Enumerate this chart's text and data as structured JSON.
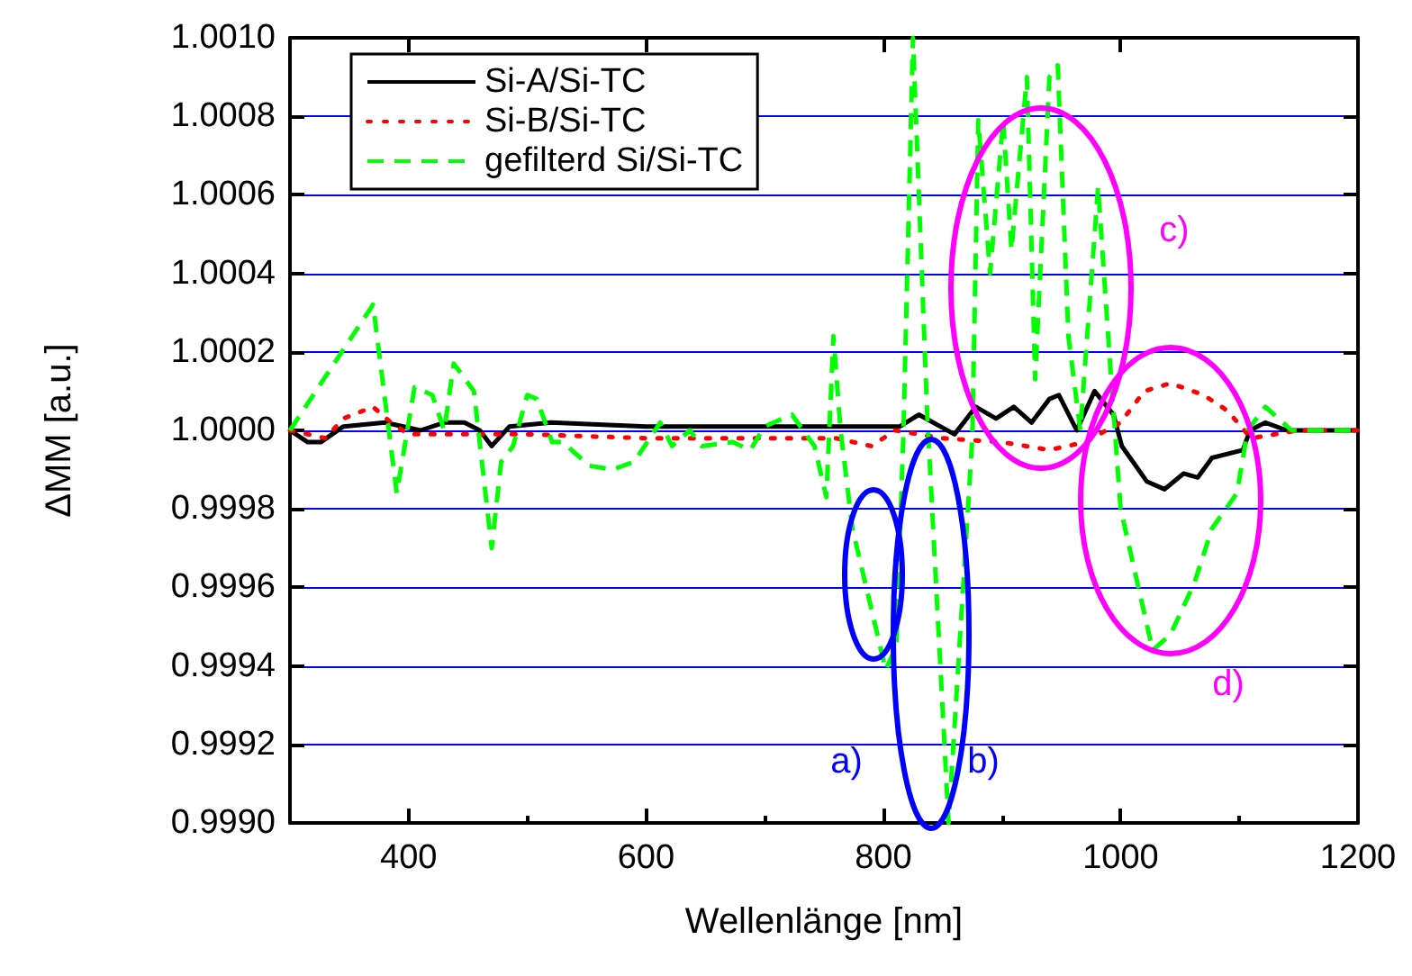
{
  "chart_data": {
    "type": "line",
    "xlabel": "Wellenlänge [nm]",
    "ylabel": "ΔMM [a.u.]",
    "xlim": [
      300,
      1200
    ],
    "xticks": [
      400,
      600,
      800,
      {
        "value": 1000,
        "label": "1000"
      },
      {
        "value": 1200,
        "label": "1200"
      }
    ],
    "ylim": [
      0.999,
      1.001
    ],
    "yticks": [
      {
        "value": 0.999,
        "label": "0.9990"
      },
      0.9992,
      0.9994,
      0.9996,
      0.9998,
      {
        "value": 1.0,
        "label": "1.0000"
      },
      1.0002,
      1.0004,
      1.0006,
      1.0008,
      {
        "value": 1.001,
        "label": "1.0010"
      }
    ],
    "grid": "y",
    "legend": "top left",
    "marker": "none",
    "series": [
      {
        "name": "Si-A/Si-TC",
        "color": "#000000",
        "line_style": "solid",
        "x": [
          300,
          315,
          326,
          345,
          380,
          410,
          430,
          447,
          460,
          470,
          485,
          520,
          600,
          700,
          800,
          814,
          830,
          860,
          878,
          895,
          910,
          925,
          940,
          948,
          963,
          978,
          994,
          1001,
          1022,
          1037,
          1053,
          1065,
          1077,
          1103,
          1109,
          1122,
          1140,
          1200
        ],
        "values": [
          1.0,
          0.99997,
          0.99997,
          1.00001,
          1.00002,
          1.0,
          1.00002,
          1.00002,
          1.0,
          0.99996,
          1.00001,
          1.00002,
          1.00001,
          1.00001,
          1.00001,
          1.00001,
          1.00004,
          0.99999,
          1.00006,
          1.00003,
          1.00006,
          1.00002,
          1.00008,
          1.00009,
          1.0,
          1.0001,
          1.00004,
          0.99996,
          0.99987,
          0.99985,
          0.99989,
          0.99988,
          0.99993,
          0.99995,
          1.0,
          1.00002,
          1.0,
          1.0
        ]
      },
      {
        "name": "Si-B/Si-TC",
        "color": "#ff0000",
        "line_style": "dotted",
        "x": [
          300,
          330,
          345,
          370,
          385,
          400,
          500,
          600,
          700,
          760,
          790,
          810,
          850,
          900,
          940,
          970,
          1000,
          1020,
          1042,
          1070,
          1090,
          1110,
          1150,
          1200
        ],
        "values": [
          1.0,
          0.99998,
          1.00003,
          1.00006,
          1.00002,
          0.99999,
          0.99999,
          0.99998,
          0.99998,
          0.99998,
          0.99996,
          1.0,
          0.99998,
          0.99997,
          0.99995,
          0.99997,
          1.00002,
          1.0001,
          1.00012,
          1.00009,
          1.00005,
          0.99998,
          1.0,
          1.0
        ]
      },
      {
        "name": "gefilterd Si/Si-TC",
        "color": "#00ff00",
        "line_style": "dashed",
        "x": [
          300,
          370,
          390,
          405,
          420,
          430,
          438,
          455,
          470,
          478,
          488,
          500,
          508,
          521,
          530,
          552,
          572,
          590,
          612,
          622,
          637,
          647,
          673,
          688,
          700,
          723,
          742,
          752,
          758,
          764,
          774,
          802,
          811,
          817,
          825,
          837,
          855,
          875,
          880,
          890,
          901,
          908,
          921,
          928,
          940,
          947,
          956,
          966,
          981,
          992,
          1000,
          1027,
          1042,
          1062,
          1077,
          1098,
          1107,
          1122,
          1144,
          1177,
          1200
        ],
        "values": [
          1.0,
          1.00032,
          0.99984,
          1.00011,
          1.00009,
          1.0,
          1.00017,
          1.0001,
          0.9997,
          0.99992,
          0.99996,
          1.00009,
          1.00008,
          0.99997,
          0.99997,
          0.99991,
          0.9999,
          0.99992,
          1.00002,
          0.99996,
          1.0,
          0.99996,
          0.99997,
          0.99995,
          1.00001,
          1.00004,
          0.99996,
          0.99983,
          1.00024,
          1.0,
          0.99975,
          0.99939,
          0.99945,
          1.0,
          1.001,
          1.00004,
          0.999,
          0.99998,
          1.00079,
          1.0004,
          1.00079,
          1.00046,
          1.0009,
          1.00013,
          1.0009,
          1.00093,
          1.00024,
          1.0,
          1.00062,
          1.00013,
          0.9998,
          0.99944,
          0.99948,
          0.99961,
          0.99975,
          0.99984,
          1.0,
          1.00006,
          1.0,
          1.0,
          1.0
        ]
      }
    ],
    "annotations": [
      "a)",
      "b)",
      "c)",
      "d)"
    ]
  }
}
